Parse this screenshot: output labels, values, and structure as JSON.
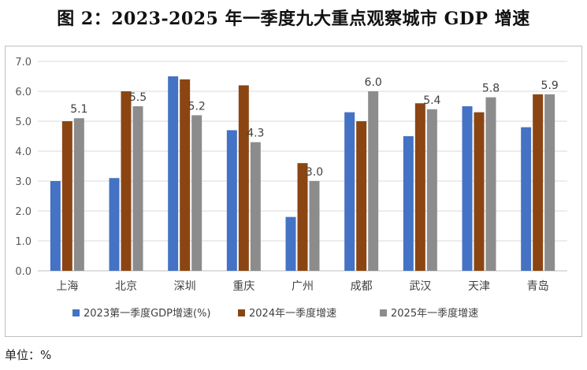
{
  "title": "图 2：2023-2025 年一季度九大重点观察城市 GDP 增速",
  "footer": "单位：%",
  "chart_data": {
    "type": "bar",
    "categories": [
      "上海",
      "北京",
      "深圳",
      "重庆",
      "广州",
      "成都",
      "武汉",
      "天津",
      "青岛"
    ],
    "series": [
      {
        "name": "2023第一季度GDP增速(%)",
        "values": [
          3.0,
          3.1,
          6.5,
          4.7,
          1.8,
          5.3,
          4.5,
          5.5,
          4.8
        ],
        "color": "#4472C4"
      },
      {
        "name": "2024年一季度增速",
        "values": [
          5.0,
          6.0,
          6.4,
          6.2,
          3.6,
          5.0,
          5.6,
          5.3,
          5.9
        ],
        "color": "#8B4513"
      },
      {
        "name": "2025年一季度增速",
        "values": [
          5.1,
          5.5,
          5.2,
          4.3,
          3.0,
          6.0,
          5.4,
          5.8,
          5.9
        ],
        "color": "#8C8C8C"
      }
    ],
    "data_labels": [
      "5.1",
      "5.5",
      "5.2",
      "4.3",
      "3.0",
      "6.0",
      "5.4",
      "5.8",
      "5.9"
    ],
    "y_ticks": [
      "0.0",
      "1.0",
      "2.0",
      "3.0",
      "4.0",
      "5.0",
      "6.0",
      "7.0"
    ],
    "ylim": [
      0,
      7
    ],
    "grid": true,
    "legend_position": "bottom"
  }
}
